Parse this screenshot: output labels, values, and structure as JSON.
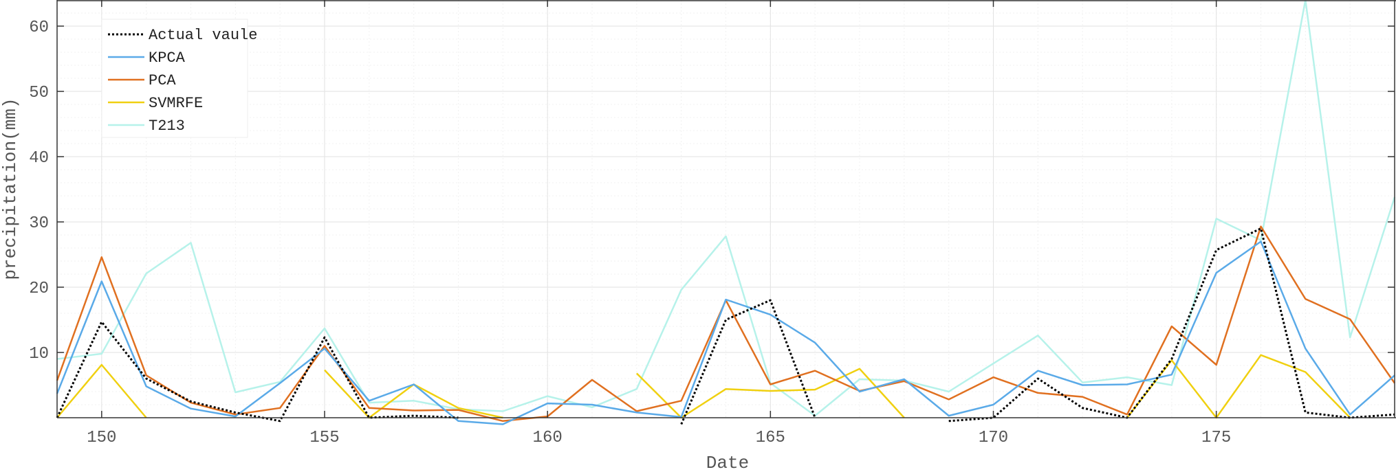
{
  "chart_data": {
    "type": "line",
    "xlabel": "Date",
    "ylabel": "precipitation(mm)",
    "xlim": [
      149,
      179
    ],
    "ylim": [
      0,
      64
    ],
    "xticks": [
      150,
      155,
      160,
      165,
      170,
      175
    ],
    "yticks": [
      10,
      20,
      30,
      40,
      50,
      60
    ],
    "grid": true,
    "legend_position": "top-left",
    "x": [
      149,
      150,
      151,
      152,
      153,
      154,
      155,
      156,
      157,
      158,
      159,
      160,
      161,
      162,
      163,
      164,
      165,
      166,
      167,
      168,
      169,
      170,
      171,
      172,
      173,
      174,
      175,
      176,
      177,
      178,
      179
    ],
    "series": [
      {
        "name": "Actual vaule",
        "color": "#000000",
        "dash": "dotted",
        "values": [
          0,
          14.7,
          6,
          2.5,
          0.8,
          -0.5,
          12.3,
          0,
          0.3,
          0,
          null,
          null,
          null,
          null,
          -1,
          15,
          18,
          0,
          null,
          null,
          -0.5,
          0,
          6,
          1.5,
          0,
          9,
          25.7,
          29,
          0.8,
          0,
          0.5
        ]
      },
      {
        "name": "KPCA",
        "color": "#5aaae8",
        "dash": "solid",
        "values": [
          3.7,
          20.9,
          4.8,
          1.4,
          0.2,
          5.3,
          10.6,
          2.6,
          5.1,
          -0.5,
          -1,
          2.2,
          2,
          0.8,
          0.1,
          18.1,
          15.8,
          11.5,
          4,
          5.9,
          0.3,
          2,
          7.2,
          5,
          5.1,
          6.6,
          22.2,
          27,
          10.6,
          0.5,
          6.5
        ]
      },
      {
        "name": "PCA",
        "color": "#e07020",
        "dash": "solid",
        "values": [
          5.7,
          24.6,
          6.5,
          2.3,
          0.5,
          1.5,
          11,
          1.5,
          1.1,
          1.2,
          -0.5,
          0.2,
          5.8,
          1,
          2.6,
          18,
          5.1,
          7.2,
          4.1,
          5.6,
          2.8,
          6.2,
          3.8,
          3.2,
          0.5,
          14,
          8.1,
          29.3,
          18.2,
          15.1,
          5.3
        ]
      },
      {
        "name": "SVMRFE",
        "color": "#f0d010",
        "dash": "solid",
        "values": [
          0,
          8.1,
          0,
          null,
          null,
          null,
          7.3,
          0,
          5.1,
          1.5,
          0,
          null,
          null,
          6.8,
          0,
          4.4,
          4.1,
          4.3,
          7.5,
          0,
          null,
          null,
          null,
          null,
          0,
          8.8,
          0,
          9.6,
          7,
          0,
          null
        ]
      },
      {
        "name": "T213",
        "color": "#b6f2ea",
        "dash": "solid",
        "values": [
          9,
          9.8,
          22.1,
          26.8,
          3.9,
          5.5,
          13.7,
          2.3,
          2.6,
          1.3,
          1,
          3.3,
          1.6,
          4.4,
          19.6,
          27.8,
          5.3,
          0.3,
          5.9,
          5.7,
          4,
          8.3,
          12.6,
          5.4,
          6.2,
          5,
          30.5,
          27.2,
          64,
          12.3,
          33.8
        ]
      }
    ]
  }
}
